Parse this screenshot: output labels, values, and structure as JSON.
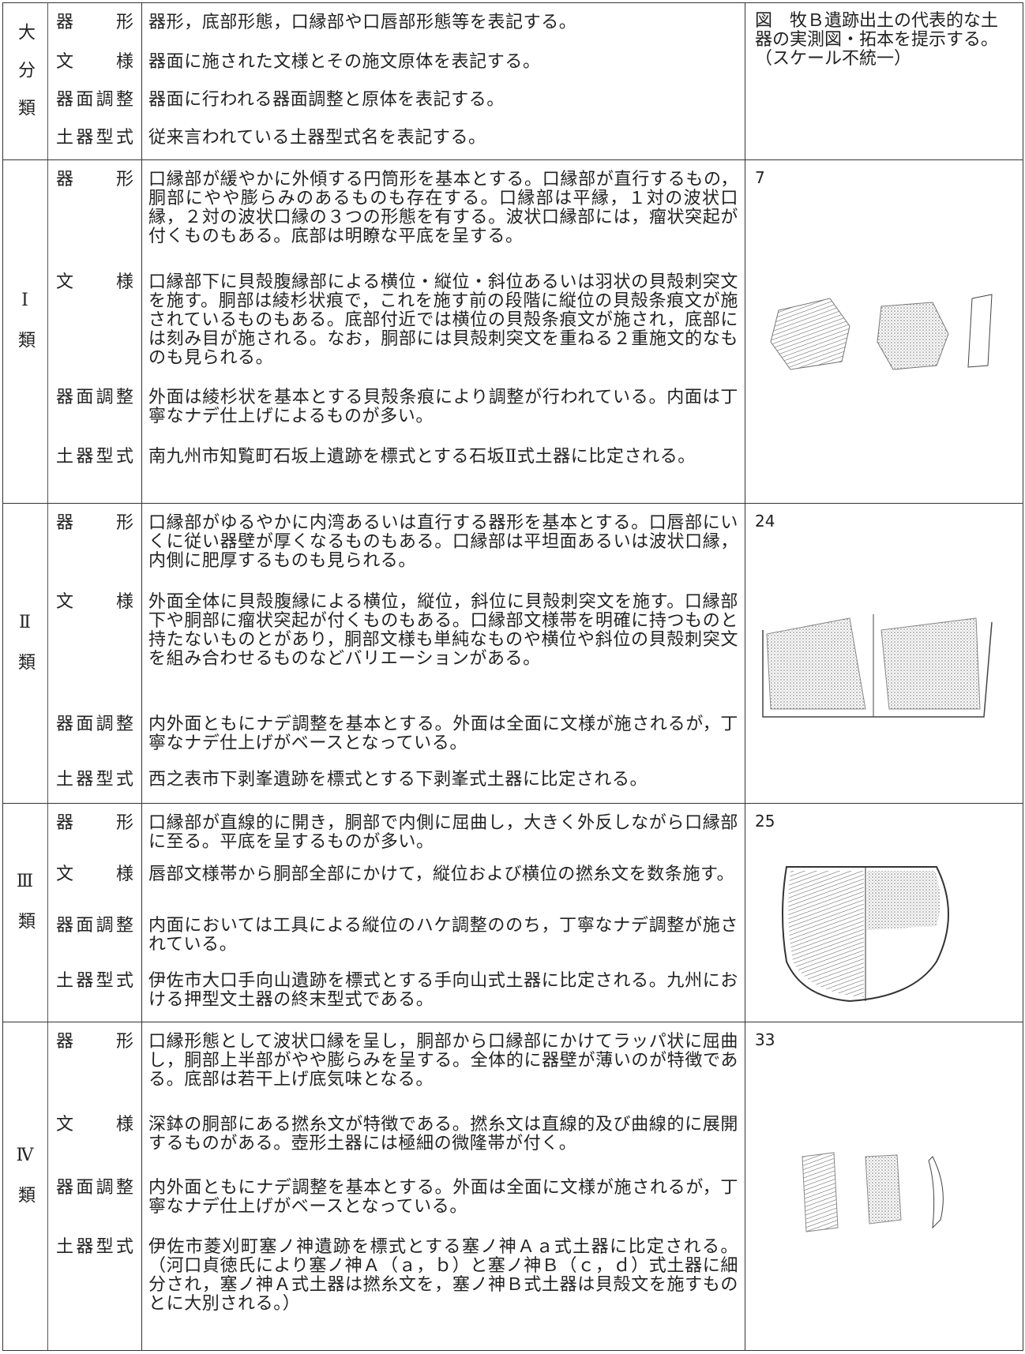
{
  "table": {
    "header": {
      "group": "大分類",
      "caption": "図　牧Ｂ遺跡出土の代表的な土器の実測図・拓本を提示する。（スケール不統一）",
      "rows": [
        {
          "label": "器形",
          "text": "器形，底部形態，口縁部や口唇部形態等を表記する。"
        },
        {
          "label": "文様",
          "text": "器面に施された文様とその施文原体を表記する。"
        },
        {
          "label": "器面調整",
          "text": "器面に行われる器面調整と原体を表記する。"
        },
        {
          "label": "土器型式",
          "text": "従来言われている土器型式名を表記する。"
        }
      ]
    },
    "groups": [
      {
        "group": "Ⅰ類",
        "figure": "7",
        "rows": [
          {
            "label": "器形",
            "text": "口縁部が緩やかに外傾する円筒形を基本とする。口縁部が直行するもの，胴部にやや膨らみのあるものも存在する。口縁部は平縁，１対の波状口縁，２対の波状口縁の３つの形態を有する。波状口縁部には，瘤状突起が付くものもある。底部は明瞭な平底を呈する。"
          },
          {
            "label": "文様",
            "text": "口縁部下に貝殻腹縁部による横位・縦位・斜位あるいは羽状の貝殻刺突文を施す。胴部は綾杉状痕で，これを施す前の段階に縦位の貝殻条痕文が施されているものもある。底部付近では横位の貝殻条痕文が施され，底部には刻み目が施される。なお，胴部には貝殻刺突文を重ねる２重施文的なものも見られる。"
          },
          {
            "label": "器面調整",
            "text": "外面は綾杉状を基本とする貝殻条痕により調整が行われている。内面は丁寧なナデ仕上げによるものが多い。"
          },
          {
            "label": "土器型式",
            "text": "南九州市知覧町石坂上遺跡を標式とする石坂Ⅱ式土器に比定される。"
          }
        ]
      },
      {
        "group": "Ⅱ類",
        "figure": "24",
        "rows": [
          {
            "label": "器形",
            "text": "口縁部がゆるやかに内湾あるいは直行する器形を基本とする。口唇部にいくに従い器壁が厚くなるものもある。口縁部は平坦面あるいは波状口縁，内側に肥厚するものも見られる。"
          },
          {
            "label": "文様",
            "text": "外面全体に貝殻腹縁による横位，縦位，斜位に貝殻刺突文を施す。口縁部下や胴部に瘤状突起が付くものもある。口縁部文様帯を明確に持つものと持たないものとがあり，胴部文様も単純なものや横位や斜位の貝殻刺突文を組み合わせるものなどバリエーションがある。"
          },
          {
            "label": "器面調整",
            "text": "内外面ともにナデ調整を基本とする。外面は全面に文様が施されるが，丁寧なナデ仕上げがベースとなっている。"
          },
          {
            "label": "土器型式",
            "text": "西之表市下剥峯遺跡を標式とする下剥峯式土器に比定される。"
          }
        ]
      },
      {
        "group": "Ⅲ類",
        "figure": "25",
        "rows": [
          {
            "label": "器形",
            "text": "口縁部が直線的に開き，胴部で内側に屈曲し，大きく外反しながら口縁部に至る。平底を呈するものが多い。"
          },
          {
            "label": "文様",
            "text": "唇部文様帯から胴部全部にかけて，縦位および横位の撚糸文を数条施す。"
          },
          {
            "label": "器面調整",
            "text": "内面においては工具による縦位のハケ調整ののち，丁寧なナデ調整が施されている。"
          },
          {
            "label": "土器型式",
            "text": "伊佐市大口手向山遺跡を標式とする手向山式土器に比定される。九州における押型文土器の終末型式である。"
          }
        ]
      },
      {
        "group": "Ⅳ類",
        "figure": "33",
        "rows": [
          {
            "label": "器形",
            "text": "口縁形態として波状口縁を呈し，胴部から口縁部にかけてラッパ状に屈曲し，胴部上半部がやや膨らみを呈する。全体的に器壁が薄いのが特徴である。底部は若干上げ底気味となる。"
          },
          {
            "label": "文様",
            "text": "深鉢の胴部にある撚糸文が特徴である。撚糸文は直線的及び曲線的に展開するものがある。壺形土器には極細の微隆帯が付く。"
          },
          {
            "label": "器面調整",
            "text": "内外面ともにナデ調整を基本とする。外面は全面に文様が施されるが，丁寧なナデ仕上げがベースとなっている。"
          },
          {
            "label": "土器型式",
            "text": "伊佐市菱刈町塞ノ神遺跡を標式とする塞ノ神Ａａ式土器に比定される。（河口貞徳氏により塞ノ神Ａ（ａ，ｂ）と塞ノ神Ｂ（ｃ，ｄ）式土器に細分され，塞ノ神Ａ式土器は撚糸文を，塞ノ神Ｂ式土器は貝殻文を施すものとに大別される。）"
          }
        ]
      }
    ]
  }
}
